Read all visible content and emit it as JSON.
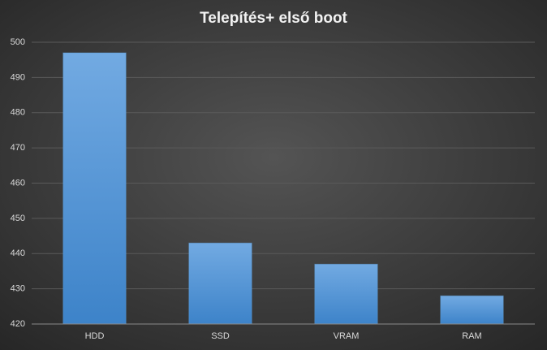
{
  "chart_data": {
    "type": "bar",
    "title": "Telepítés+ első boot",
    "categories": [
      "HDD",
      "SSD",
      "VRAM",
      "RAM"
    ],
    "values": [
      497,
      443,
      437,
      428
    ],
    "color": "#5b9bd5",
    "ylim": [
      420,
      500
    ],
    "yticks": [
      420,
      430,
      440,
      450,
      460,
      470,
      480,
      490,
      500
    ],
    "grid": true
  }
}
